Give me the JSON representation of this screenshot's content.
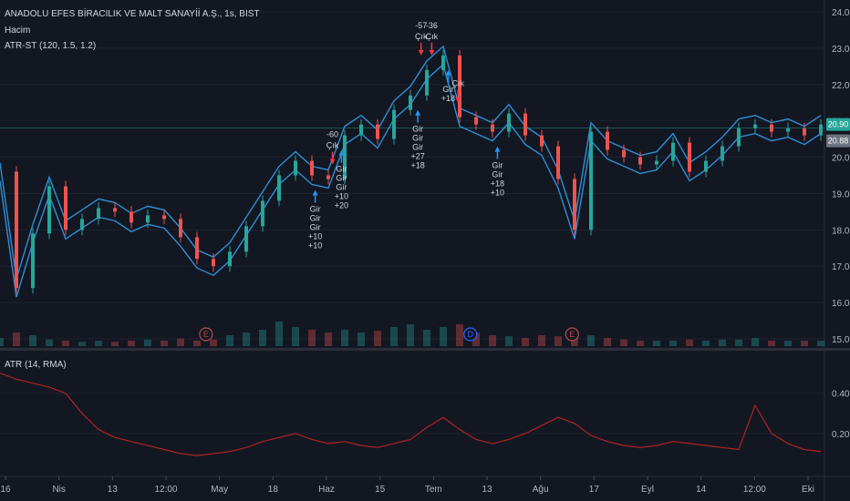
{
  "legend": {
    "title": "ANADOLU EFES BİRACILIK VE MALT SANAYİİ A.Ş., 1s, BIST",
    "volume": "Hacim",
    "atrst": "ATR-ST (120, 1.5, 1.2)",
    "atr": "ATR (14, RMA)"
  },
  "price_badges": {
    "upper": "20.90",
    "lower": "20.88"
  },
  "colors": {
    "background": "#131722",
    "band": "#2e8fd6",
    "candle_up": "#26a69a",
    "candle_down": "#ef5350",
    "atr_line": "#b22222",
    "badge_upper": "#26a69a",
    "badge_lower": "#6b7280",
    "signal_up": "#2196f3",
    "signal_down": "#f23645",
    "event_earnings": "#b54b4b",
    "event_dividend": "#2962ff"
  },
  "chart_data": [
    {
      "type": "line",
      "name": "price",
      "y_ticks": [
        "24.00",
        "23.00",
        "22.00",
        "21.00",
        "20.00",
        "19.00",
        "18.00",
        "17.00",
        "16.00",
        "15.00"
      ],
      "ylim": [
        14.8,
        24.2
      ],
      "x_ticks": [
        "16",
        "Nis",
        "13",
        "12:00",
        "May",
        "18",
        "Haz",
        "15",
        "Tem",
        "13",
        "Ağu",
        "17",
        "Eyl",
        "14",
        "12:00",
        "Eki"
      ],
      "xlim": [
        0,
        100
      ],
      "x": [
        0,
        2,
        4,
        6,
        8,
        10,
        12,
        14,
        16,
        18,
        20,
        22,
        24,
        26,
        28,
        30,
        32,
        34,
        36,
        38,
        40,
        42,
        44,
        46,
        48,
        50,
        52,
        54,
        56,
        58,
        60,
        62,
        64,
        66,
        68,
        70,
        72,
        74,
        76,
        78,
        80,
        82,
        84,
        86,
        88,
        90,
        92,
        94,
        96,
        98,
        100
      ],
      "close": [
        19.6,
        16.4,
        17.9,
        19.2,
        18.0,
        18.3,
        18.6,
        18.5,
        18.2,
        18.4,
        18.3,
        17.8,
        17.2,
        17.0,
        17.4,
        18.1,
        18.8,
        19.5,
        19.9,
        19.5,
        19.4,
        20.6,
        20.9,
        20.5,
        21.3,
        21.7,
        22.4,
        22.8,
        21.1,
        20.9,
        20.7,
        21.2,
        20.6,
        20.3,
        19.4,
        18.0,
        20.7,
        20.2,
        20.0,
        19.8,
        19.9,
        20.4,
        19.6,
        19.9,
        20.3,
        20.8,
        20.9,
        20.7,
        20.8,
        20.6,
        20.9
      ],
      "band_offset": 0.25,
      "volume": [
        0.15,
        0.25,
        0.2,
        0.12,
        0.1,
        0.08,
        0.1,
        0.08,
        0.1,
        0.12,
        0.1,
        0.14,
        0.1,
        0.12,
        0.2,
        0.25,
        0.3,
        0.45,
        0.35,
        0.3,
        0.25,
        0.3,
        0.25,
        0.28,
        0.35,
        0.4,
        0.3,
        0.35,
        0.4,
        0.25,
        0.2,
        0.18,
        0.15,
        0.2,
        0.18,
        0.22,
        0.2,
        0.15,
        0.12,
        0.1,
        0.1,
        0.1,
        0.12,
        0.1,
        0.12,
        0.12,
        0.15,
        0.1,
        0.1,
        0.1,
        0.1
      ],
      "signals": [
        {
          "x": 40.5,
          "kind": "exit",
          "lines": [
            "-60",
            "Çık"
          ]
        },
        {
          "x": 51.3,
          "kind": "exit",
          "lines": [
            "-57",
            "Çık"
          ]
        },
        {
          "x": 52.6,
          "kind": "exit",
          "lines": [
            "-36",
            "Çık"
          ]
        },
        {
          "x": 55.8,
          "kind": "exit",
          "lines": [
            "Çık"
          ]
        },
        {
          "x": 41.6,
          "kind": "enter",
          "lines": [
            "Gir",
            "Gir",
            "Gir",
            "+10",
            "+20"
          ]
        },
        {
          "x": 38.4,
          "kind": "enter",
          "lines": [
            "Gir",
            "Gir",
            "Gir",
            "+10",
            "+10"
          ]
        },
        {
          "x": 50.9,
          "kind": "enter",
          "lines": [
            "Gir",
            "Gir",
            "Gir",
            "+27",
            "+18"
          ]
        },
        {
          "x": 54.6,
          "kind": "enter",
          "lines": [
            "Gir",
            "+18"
          ]
        },
        {
          "x": 60.6,
          "kind": "enter",
          "lines": [
            "Gir",
            "Gir",
            "+18",
            "+10"
          ]
        }
      ],
      "events": [
        {
          "x": 25.1,
          "label": "E",
          "kind": "earnings"
        },
        {
          "x": 57.3,
          "label": "D",
          "kind": "dividend"
        },
        {
          "x": 69.7,
          "label": "E",
          "kind": "earnings"
        }
      ]
    },
    {
      "type": "line",
      "name": "ATR (14, RMA)",
      "y_ticks": [
        "0.40",
        "0.20"
      ],
      "ylim": [
        0.0,
        0.58
      ],
      "x": [
        0,
        2,
        4,
        6,
        8,
        10,
        12,
        14,
        16,
        18,
        20,
        22,
        24,
        26,
        28,
        30,
        32,
        34,
        36,
        38,
        40,
        42,
        44,
        46,
        48,
        50,
        52,
        54,
        56,
        58,
        60,
        62,
        64,
        66,
        68,
        70,
        72,
        74,
        76,
        78,
        80,
        82,
        84,
        86,
        88,
        90,
        92,
        94,
        96,
        98,
        100
      ],
      "values": [
        0.5,
        0.47,
        0.45,
        0.43,
        0.4,
        0.3,
        0.22,
        0.18,
        0.16,
        0.14,
        0.12,
        0.1,
        0.09,
        0.1,
        0.11,
        0.13,
        0.16,
        0.18,
        0.2,
        0.17,
        0.15,
        0.16,
        0.14,
        0.13,
        0.15,
        0.17,
        0.23,
        0.28,
        0.22,
        0.17,
        0.15,
        0.17,
        0.2,
        0.24,
        0.28,
        0.25,
        0.19,
        0.16,
        0.14,
        0.13,
        0.14,
        0.16,
        0.15,
        0.14,
        0.13,
        0.12,
        0.34,
        0.2,
        0.15,
        0.12,
        0.11
      ]
    }
  ]
}
